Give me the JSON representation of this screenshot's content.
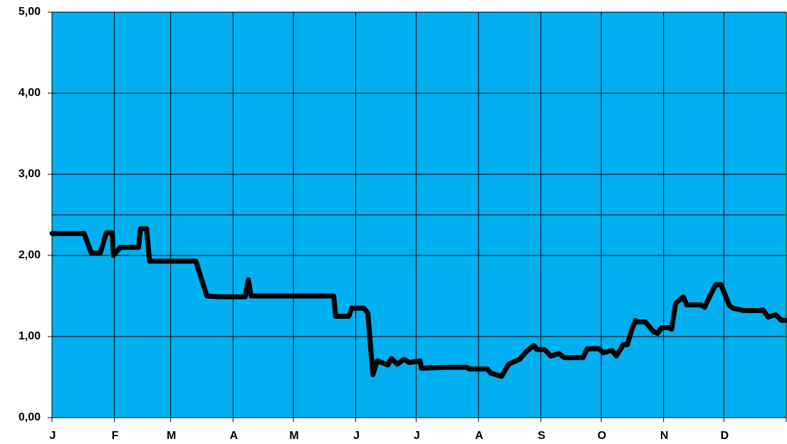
{
  "chart_data": {
    "type": "line",
    "background": "#00b0f0",
    "grid": true,
    "xlim": [
      0,
      365
    ],
    "xticks": [
      {
        "value": 0,
        "label": "J"
      },
      {
        "value": 31,
        "label": "F"
      },
      {
        "value": 59,
        "label": "M"
      },
      {
        "value": 90,
        "label": "A"
      },
      {
        "value": 120,
        "label": "M"
      },
      {
        "value": 151,
        "label": "J"
      },
      {
        "value": 181,
        "label": "J"
      },
      {
        "value": 212,
        "label": "A"
      },
      {
        "value": 243,
        "label": "S"
      },
      {
        "value": 273,
        "label": "O"
      },
      {
        "value": 304,
        "label": "N"
      },
      {
        "value": 334,
        "label": "D"
      },
      {
        "value": 365,
        "label": null
      }
    ],
    "ylim": [
      0,
      5
    ],
    "yticks": [
      {
        "value": 0,
        "label": "0,00"
      },
      {
        "value": 1,
        "label": "1,00"
      },
      {
        "value": 2,
        "label": "2,00"
      },
      {
        "value": 3,
        "label": "3,00"
      },
      {
        "value": 4,
        "label": "4,00"
      },
      {
        "value": 5,
        "label": "5,00"
      }
    ],
    "reference_line": 2.5,
    "series": [
      {
        "color": "#000000",
        "x": [
          0,
          16,
          19.5,
          24,
          27,
          30,
          30.5,
          34,
          43,
          44,
          47,
          48.5,
          71.5,
          77,
          83,
          96,
          97.6,
          99,
          140,
          141,
          147.5,
          149,
          155,
          157,
          159.5,
          161.7,
          167,
          168.7,
          171.6,
          175,
          177.6,
          183,
          183.6,
          195,
          206,
          207.6,
          216.5,
          218,
          223.5,
          227,
          232.4,
          236,
          239.5,
          241,
          244.8,
          248,
          252,
          254.7,
          264,
          266,
          272,
          274,
          278.4,
          280.5,
          284,
          286,
          288,
          290,
          291,
          295,
          299,
          301,
          303,
          306.7,
          308,
          310,
          313.8,
          315.5,
          322.6,
          324.4,
          328,
          330,
          332.5,
          336.8,
          338.5,
          344,
          352,
          353.4,
          356,
          359.7,
          362.6,
          365
        ],
        "values": [
          2.27,
          2.27,
          2.03,
          2.03,
          2.28,
          2.28,
          2.0,
          2.1,
          2.1,
          2.33,
          2.33,
          1.93,
          1.93,
          1.5,
          1.49,
          1.49,
          1.7,
          1.5,
          1.5,
          1.25,
          1.25,
          1.35,
          1.35,
          1.29,
          0.53,
          0.7,
          0.65,
          0.73,
          0.66,
          0.72,
          0.68,
          0.7,
          0.61,
          0.62,
          0.62,
          0.6,
          0.6,
          0.55,
          0.51,
          0.66,
          0.72,
          0.82,
          0.89,
          0.84,
          0.84,
          0.76,
          0.79,
          0.74,
          0.74,
          0.85,
          0.85,
          0.8,
          0.83,
          0.76,
          0.9,
          0.9,
          1.07,
          1.2,
          1.18,
          1.18,
          1.06,
          1.04,
          1.11,
          1.11,
          1.09,
          1.41,
          1.49,
          1.39,
          1.39,
          1.36,
          1.55,
          1.64,
          1.64,
          1.38,
          1.35,
          1.32,
          1.32,
          1.33,
          1.24,
          1.27,
          1.2,
          1.2
        ]
      }
    ]
  }
}
